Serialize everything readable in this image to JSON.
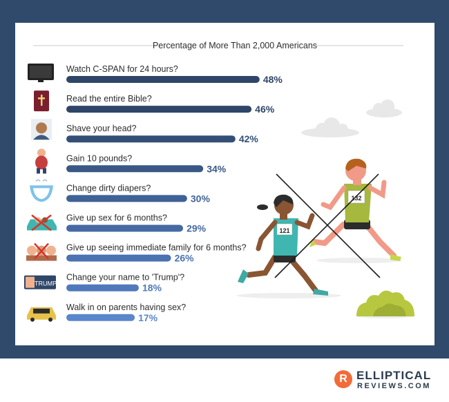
{
  "chart_data": {
    "type": "bar",
    "orientation": "horizontal",
    "title": "Percentage of More Than 2,000 Americans",
    "categories": [
      "Watch C-SPAN for 24 hours?",
      "Read the entire Bible?",
      "Shave your head?",
      "Gain 10 pounds?",
      "Change dirty diapers?",
      "Give up sex for 6 months?",
      "Give up seeing immediate family for 6 months?",
      "Change your name to 'Trump'?",
      "Walk in on parents having sex?"
    ],
    "values": [
      48,
      46,
      42,
      34,
      30,
      29,
      26,
      18,
      17
    ],
    "value_labels": [
      "48%",
      "46%",
      "42%",
      "34%",
      "30%",
      "29%",
      "26%",
      "18%",
      "17%"
    ],
    "icons": [
      "tv-icon",
      "bible-icon",
      "bald-head-icon",
      "overweight-person-icon",
      "diaper-icon",
      "couple-in-car-icon",
      "family-crossed-icon",
      "trump-badge-icon",
      "car-icon"
    ],
    "icon_texts": {
      "trump_badge": "TRUMP"
    },
    "bar_colors": [
      "#2f4668",
      "#2f4668",
      "#344f76",
      "#3a5886",
      "#3f6296",
      "#4669a3",
      "#4b72b1",
      "#5079bc",
      "#5a86cc"
    ],
    "runner_bibs": {
      "front": "121",
      "back": "132"
    },
    "xlim": [
      0,
      50
    ]
  },
  "footer": {
    "logo_letter": "R",
    "brand_top": "ELLIPTICAL",
    "brand_bottom": "REVIEWS.COM"
  },
  "colors": {
    "frame": "#2f4a6b",
    "accent": "#f26b3a"
  }
}
